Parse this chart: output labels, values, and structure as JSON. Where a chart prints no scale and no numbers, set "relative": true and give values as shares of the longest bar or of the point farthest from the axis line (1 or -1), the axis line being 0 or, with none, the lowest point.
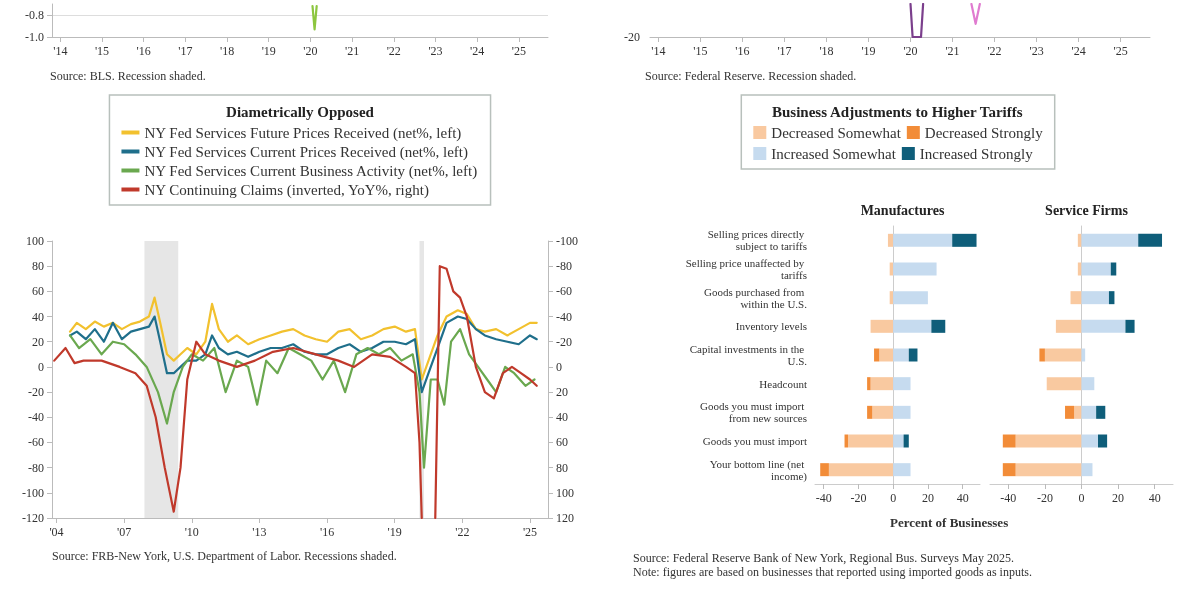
{
  "chart_data": [
    {
      "type": "line",
      "xlim": [
        2013.8,
        2025.7
      ],
      "xticks": [
        {
          "value": 2014,
          "label": "'14"
        },
        {
          "value": 2015,
          "label": "'15"
        },
        {
          "value": 2016,
          "label": "'16"
        },
        {
          "value": 2017,
          "label": "'17"
        },
        {
          "value": 2018,
          "label": "'18"
        },
        {
          "value": 2019,
          "label": "'19"
        },
        {
          "value": 2020,
          "label": "'20"
        },
        {
          "value": 2021,
          "label": "'21"
        },
        {
          "value": 2022,
          "label": "'22"
        },
        {
          "value": 2023,
          "label": "'23"
        },
        {
          "value": 2024,
          "label": "'24"
        },
        {
          "value": 2025,
          "label": "'25"
        }
      ],
      "ylim": [
        -1.0,
        -0.7
      ],
      "yticks": [
        {
          "value": -0.8,
          "label": "-0.8"
        },
        {
          "value": -1.0,
          "label": "-1.0"
        }
      ],
      "grid": "y",
      "marker": "none",
      "line_style": "solid",
      "series": [
        {
          "color": "#8cc63f",
          "x": [
            2020.05,
            2020.1,
            2020.15
          ],
          "values": [
            -0.72,
            -0.93,
            -0.72
          ]
        }
      ],
      "annotations": [
        "Source: BLS. Recession shaded."
      ]
    },
    {
      "type": "line",
      "xlim": [
        2013.8,
        2025.7
      ],
      "xticks": [
        {
          "value": 2014,
          "label": "'14"
        },
        {
          "value": 2015,
          "label": "'15"
        },
        {
          "value": 2016,
          "label": "'16"
        },
        {
          "value": 2017,
          "label": "'17"
        },
        {
          "value": 2018,
          "label": "'18"
        },
        {
          "value": 2019,
          "label": "'19"
        },
        {
          "value": 2020,
          "label": "'20"
        },
        {
          "value": 2021,
          "label": "'21"
        },
        {
          "value": 2022,
          "label": "'22"
        },
        {
          "value": 2023,
          "label": "'23"
        },
        {
          "value": 2024,
          "label": "'24"
        },
        {
          "value": 2025,
          "label": "'25"
        }
      ],
      "relative": true,
      "marker": "none",
      "line_style": "solid",
      "series": [
        {
          "color": "#7b3f8c",
          "x": [
            2020.0,
            2020.05,
            2020.25,
            2020.3
          ],
          "values": [
            1,
            0,
            0,
            1
          ]
        },
        {
          "color": "#e07bd0",
          "x": [
            2021.45,
            2021.55,
            2021.65
          ],
          "values": [
            1,
            0.4,
            1
          ]
        }
      ],
      "annotations": [
        "-20",
        "Source: Federal Reserve. Recession shaded."
      ]
    },
    {
      "type": "line",
      "legend_title": "Diametrically Opposed",
      "legend": "top",
      "marker": "none",
      "line_style": "solid",
      "xlim": [
        2003.8,
        2025.8
      ],
      "xticks": [
        {
          "value": 2004,
          "label": "'04"
        },
        {
          "value": 2007,
          "label": "'07"
        },
        {
          "value": 2010,
          "label": "'10"
        },
        {
          "value": 2013,
          "label": "'13"
        },
        {
          "value": 2016,
          "label": "'16"
        },
        {
          "value": 2019,
          "label": "'19"
        },
        {
          "value": 2022,
          "label": "'22"
        },
        {
          "value": 2025,
          "label": "'25"
        }
      ],
      "ylim": [
        -120,
        100
      ],
      "yticks": [
        -120,
        -100,
        -80,
        -60,
        -40,
        -20,
        0,
        20,
        40,
        60,
        80,
        100
      ],
      "y2lim": [
        120,
        -100
      ],
      "y2ticks": [
        -100,
        -80,
        -60,
        -40,
        -20,
        0,
        20,
        40,
        60,
        80,
        100,
        120
      ],
      "bands": [
        {
          "axis": "x",
          "from": 2007.9,
          "to": 2009.4,
          "color": "#e6e6e6"
        },
        {
          "axis": "x",
          "from": 2020.1,
          "to": 2020.3,
          "color": "#e6e6e6"
        }
      ],
      "series": [
        {
          "name": "NY Fed Services Future Prices Received (net%, left)",
          "color": "#f2c12e",
          "x": [
            2004.6,
            2004.9,
            2005.3,
            2005.7,
            2006.1,
            2006.5,
            2006.9,
            2007.3,
            2007.7,
            2008.1,
            2008.35,
            2008.6,
            2008.9,
            2009.2,
            2009.5,
            2009.8,
            2010.2,
            2010.6,
            2010.9,
            2011.2,
            2011.6,
            2012.0,
            2012.5,
            2013.0,
            2013.5,
            2014.0,
            2014.5,
            2015.0,
            2015.5,
            2016.0,
            2016.5,
            2017.0,
            2017.5,
            2018.0,
            2018.5,
            2019.0,
            2019.5,
            2019.9,
            2020.2,
            2020.5,
            2020.9,
            2021.3,
            2021.8,
            2022.2,
            2022.6,
            2023.0,
            2023.5,
            2024.0,
            2024.5,
            2025.0,
            2025.3
          ],
          "values": [
            28,
            35,
            30,
            36,
            32,
            35,
            30,
            34,
            36,
            40,
            55,
            35,
            10,
            5,
            10,
            15,
            10,
            20,
            50,
            30,
            20,
            25,
            18,
            22,
            25,
            28,
            30,
            25,
            22,
            20,
            28,
            30,
            22,
            25,
            30,
            32,
            28,
            30,
            -10,
            5,
            25,
            40,
            45,
            42,
            30,
            28,
            30,
            25,
            30,
            35,
            35
          ]
        },
        {
          "name": "NY Fed Services Current Prices Received (net%, left)",
          "color": "#1f6f8b",
          "x": [
            2004.6,
            2004.9,
            2005.3,
            2005.7,
            2006.1,
            2006.5,
            2006.9,
            2007.3,
            2007.7,
            2008.1,
            2008.35,
            2008.6,
            2008.9,
            2009.2,
            2009.5,
            2009.8,
            2010.2,
            2010.6,
            2010.9,
            2011.2,
            2011.6,
            2012.0,
            2012.5,
            2013.0,
            2013.5,
            2014.0,
            2014.5,
            2015.0,
            2015.5,
            2016.0,
            2016.5,
            2017.0,
            2017.5,
            2018.0,
            2018.5,
            2019.0,
            2019.5,
            2019.9,
            2020.2,
            2020.5,
            2020.9,
            2021.3,
            2021.8,
            2022.2,
            2022.6,
            2023.0,
            2023.5,
            2024.0,
            2024.5,
            2025.0,
            2025.3
          ],
          "values": [
            25,
            28,
            22,
            30,
            20,
            35,
            22,
            28,
            30,
            32,
            40,
            20,
            -5,
            -5,
            0,
            5,
            5,
            10,
            25,
            15,
            10,
            12,
            8,
            12,
            15,
            15,
            18,
            12,
            10,
            10,
            15,
            18,
            12,
            15,
            20,
            20,
            18,
            22,
            -20,
            -5,
            15,
            35,
            40,
            38,
            30,
            25,
            22,
            20,
            18,
            25,
            22
          ]
        },
        {
          "name": "NY Fed Services Current Business Activity (net%, left)",
          "color": "#6aa84f",
          "x": [
            2004.6,
            2005.0,
            2005.5,
            2006.0,
            2006.5,
            2007.0,
            2007.5,
            2008.0,
            2008.5,
            2008.9,
            2009.2,
            2009.6,
            2010.0,
            2010.5,
            2011.0,
            2011.5,
            2012.0,
            2012.5,
            2012.9,
            2013.3,
            2013.8,
            2014.3,
            2014.8,
            2015.3,
            2015.8,
            2016.3,
            2016.8,
            2017.3,
            2017.8,
            2018.3,
            2018.8,
            2019.3,
            2019.8,
            2020.1,
            2020.3,
            2020.6,
            2020.9,
            2021.2,
            2021.5,
            2021.9,
            2022.3,
            2022.7,
            2023.1,
            2023.5,
            2023.9,
            2024.3,
            2024.8,
            2025.2
          ],
          "values": [
            25,
            15,
            22,
            10,
            20,
            18,
            10,
            0,
            -20,
            -45,
            -20,
            0,
            10,
            5,
            15,
            -20,
            5,
            0,
            -30,
            5,
            -5,
            15,
            10,
            5,
            -10,
            5,
            -20,
            10,
            15,
            10,
            15,
            5,
            10,
            -20,
            -80,
            -10,
            -10,
            -30,
            20,
            30,
            10,
            0,
            -10,
            -20,
            0,
            -5,
            -15,
            -10
          ]
        },
        {
          "name": "NY Continuing Claims (inverted, YoY%, right)",
          "color": "#c0392b",
          "axis": "y2",
          "x": [
            2003.9,
            2004.4,
            2004.8,
            2005.2,
            2006.0,
            2006.8,
            2007.5,
            2008.0,
            2008.4,
            2008.8,
            2009.2,
            2009.5,
            2009.8,
            2010.2,
            2010.6,
            2011.2,
            2012.0,
            2012.8,
            2013.6,
            2014.5,
            2015.5,
            2016.5,
            2017.2,
            2018.0,
            2018.8,
            2019.5,
            2019.9,
            2020.1,
            2020.2,
            2020.5,
            2020.8,
            2021.0,
            2021.3,
            2021.6,
            2021.9,
            2022.2,
            2022.6,
            2023.0,
            2023.4,
            2023.8,
            2024.2,
            2024.6,
            2025.0,
            2025.3
          ],
          "values": [
            -5,
            -15,
            -3,
            -5,
            -5,
            0,
            5,
            15,
            40,
            80,
            115,
            80,
            10,
            -20,
            -10,
            -5,
            0,
            -5,
            -12,
            -15,
            -10,
            -5,
            0,
            -10,
            -8,
            0,
            5,
            60,
            120,
            null,
            120,
            -80,
            -78,
            -60,
            -55,
            -40,
            0,
            20,
            25,
            5,
            0,
            5,
            10,
            15
          ]
        }
      ],
      "annotations": [
        "Source: FRB-New York, U.S. Department of Labor. Recessions shaded."
      ]
    },
    {
      "type": "bar",
      "orientation": "horizontal",
      "stacked": true,
      "title": "Manufactures",
      "legend_title": "Business Adjustments to Higher Tariffs",
      "legend": "top",
      "xlabel": "Percent of Businesses",
      "categories": [
        "Selling prices directly subject to tariffs",
        "Selling price unaffected by tariffs",
        "Goods purchased from within the U.S.",
        "Inventory levels",
        "Capital investments in the U.S.",
        "Headcount",
        "Goods you must import from new sources",
        "Goods you must import",
        "Your bottom line (net income)"
      ],
      "xlim": [
        -45,
        50
      ],
      "xticks": [
        -40,
        -20,
        0,
        20,
        40
      ],
      "series": [
        {
          "name": "Decreased Somewhat",
          "color": "#f9c9a0",
          "values": [
            -3,
            -2,
            -2,
            -13,
            -8,
            -13,
            -12,
            -26,
            -37
          ]
        },
        {
          "name": "Decreased Strongly",
          "color": "#f28c38",
          "values": [
            null,
            null,
            null,
            null,
            -3,
            -2,
            -3,
            -2,
            -5
          ]
        },
        {
          "name": "Increased Somewhat",
          "color": "#c6dbef",
          "values": [
            34,
            25,
            20,
            22,
            9,
            10,
            10,
            6,
            10
          ]
        },
        {
          "name": "Increased Strongly",
          "color": "#0f5e7a",
          "values": [
            14,
            null,
            null,
            8,
            5,
            null,
            null,
            3,
            null
          ]
        }
      ],
      "annotations": [
        "Source: Federal Reserve Bank of New York, Regional Bus. Surveys May 2025.",
        "Note: figures are based on businesses that reported using imported goods as inputs."
      ]
    },
    {
      "type": "bar",
      "orientation": "horizontal",
      "stacked": true,
      "title": "Service Firms",
      "tick_labels": "x",
      "categories": [
        null,
        null,
        null,
        null,
        null,
        null,
        null,
        null,
        null
      ],
      "xlim": [
        -50,
        50
      ],
      "xticks": [
        -40,
        -20,
        0,
        20,
        40
      ],
      "series": [
        {
          "color": "#f9c9a0",
          "values": [
            -2,
            -2,
            -6,
            -14,
            -20,
            -19,
            -4,
            -36,
            -36
          ]
        },
        {
          "color": "#f28c38",
          "values": [
            null,
            null,
            null,
            null,
            -3,
            null,
            -5,
            -7,
            -7
          ]
        },
        {
          "color": "#c6dbef",
          "values": [
            31,
            16,
            15,
            24,
            2,
            7,
            8,
            9,
            6
          ]
        },
        {
          "color": "#0f5e7a",
          "values": [
            13,
            3,
            3,
            5,
            null,
            null,
            5,
            5,
            null
          ]
        }
      ]
    }
  ]
}
